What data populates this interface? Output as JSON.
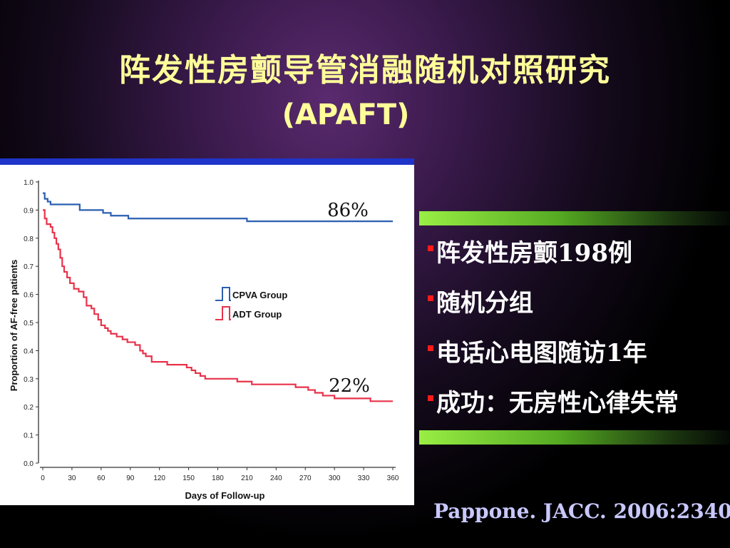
{
  "slide": {
    "title": "阵发性房颤导管消融随机对照研究",
    "subtitle": "(APAFT)",
    "bullets": [
      "阵发性房颤198例",
      "随机分组",
      "电话心电图随访1年",
      "成功：无房性心律失常"
    ],
    "citation": "Pappone. JACC. 2006:2340",
    "colors": {
      "title": "#ffff99",
      "bullet_marker": "#ff1a1a",
      "citation": "#c8c8ff",
      "panel_border": "#1f34c8"
    }
  },
  "chart_data": {
    "type": "line",
    "xlabel": "Days of Follow-up",
    "ylabel": "Proportion of AF-free patients",
    "xlim": [
      0,
      360
    ],
    "ylim": [
      0,
      1.0
    ],
    "x_ticks": [
      0,
      30,
      60,
      90,
      120,
      150,
      180,
      210,
      240,
      270,
      300,
      330,
      360
    ],
    "y_ticks": [
      "0.0",
      "0.1",
      "0.2",
      "0.3",
      "0.4",
      "0.5",
      "0.6",
      "0.7",
      "0.8",
      "0.9",
      "1.0"
    ],
    "legend_position": "center-right",
    "annotations": [
      {
        "text": "86%",
        "series": "CPVA Group"
      },
      {
        "text": "22%",
        "series": "ADT Group"
      }
    ],
    "series": [
      {
        "name": "CPVA Group",
        "color": "#2b5fb0",
        "step": true,
        "points": [
          [
            0,
            0.96
          ],
          [
            2,
            0.94
          ],
          [
            5,
            0.93
          ],
          [
            8,
            0.92
          ],
          [
            38,
            0.9
          ],
          [
            62,
            0.89
          ],
          [
            70,
            0.88
          ],
          [
            88,
            0.87
          ],
          [
            210,
            0.86
          ],
          [
            360,
            0.86
          ]
        ]
      },
      {
        "name": "ADT Group",
        "color": "#e8324a",
        "step": true,
        "points": [
          [
            0,
            0.9
          ],
          [
            2,
            0.87
          ],
          [
            4,
            0.85
          ],
          [
            8,
            0.84
          ],
          [
            10,
            0.82
          ],
          [
            12,
            0.8
          ],
          [
            14,
            0.78
          ],
          [
            16,
            0.76
          ],
          [
            18,
            0.73
          ],
          [
            20,
            0.7
          ],
          [
            22,
            0.68
          ],
          [
            25,
            0.66
          ],
          [
            28,
            0.64
          ],
          [
            32,
            0.62
          ],
          [
            37,
            0.61
          ],
          [
            42,
            0.59
          ],
          [
            45,
            0.56
          ],
          [
            50,
            0.55
          ],
          [
            53,
            0.53
          ],
          [
            57,
            0.51
          ],
          [
            60,
            0.49
          ],
          [
            64,
            0.48
          ],
          [
            67,
            0.47
          ],
          [
            70,
            0.46
          ],
          [
            76,
            0.45
          ],
          [
            82,
            0.44
          ],
          [
            87,
            0.43
          ],
          [
            95,
            0.42
          ],
          [
            100,
            0.4
          ],
          [
            103,
            0.39
          ],
          [
            106,
            0.38
          ],
          [
            112,
            0.36
          ],
          [
            128,
            0.35
          ],
          [
            148,
            0.34
          ],
          [
            153,
            0.33
          ],
          [
            157,
            0.32
          ],
          [
            162,
            0.31
          ],
          [
            167,
            0.3
          ],
          [
            200,
            0.29
          ],
          [
            215,
            0.28
          ],
          [
            260,
            0.27
          ],
          [
            273,
            0.26
          ],
          [
            280,
            0.25
          ],
          [
            288,
            0.24
          ],
          [
            300,
            0.23
          ],
          [
            337,
            0.22
          ],
          [
            360,
            0.22
          ]
        ]
      }
    ]
  }
}
